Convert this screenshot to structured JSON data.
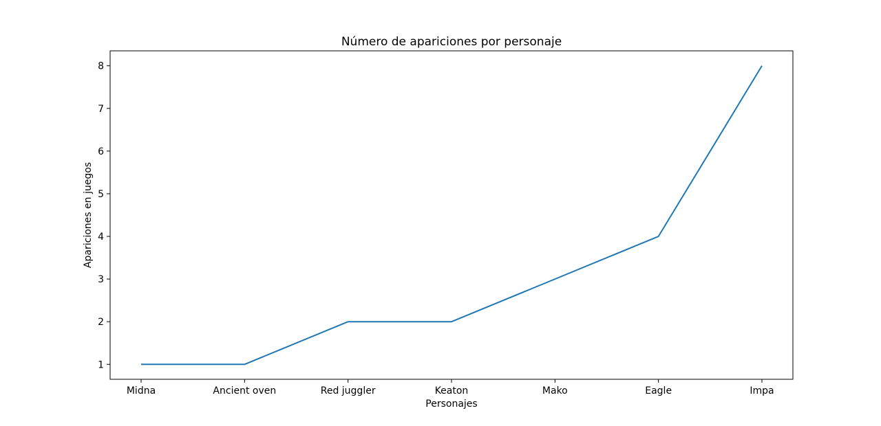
{
  "chart_data": {
    "type": "line",
    "title": "Número de apariciones por personaje",
    "xlabel": "Personajes",
    "ylabel": "Apariciones en juegos",
    "categories": [
      "Midna",
      "Ancient oven",
      "Red juggler",
      "Keaton",
      "Mako",
      "Eagle",
      "Impa"
    ],
    "series": [
      {
        "values": [
          1,
          1,
          2,
          2,
          3,
          4,
          8
        ],
        "color": "#1f77b4"
      }
    ],
    "yticks": [
      1,
      2,
      3,
      4,
      5,
      6,
      7,
      8
    ],
    "ylim": [
      0.65,
      8.35
    ],
    "grid": false,
    "legend": "none"
  }
}
